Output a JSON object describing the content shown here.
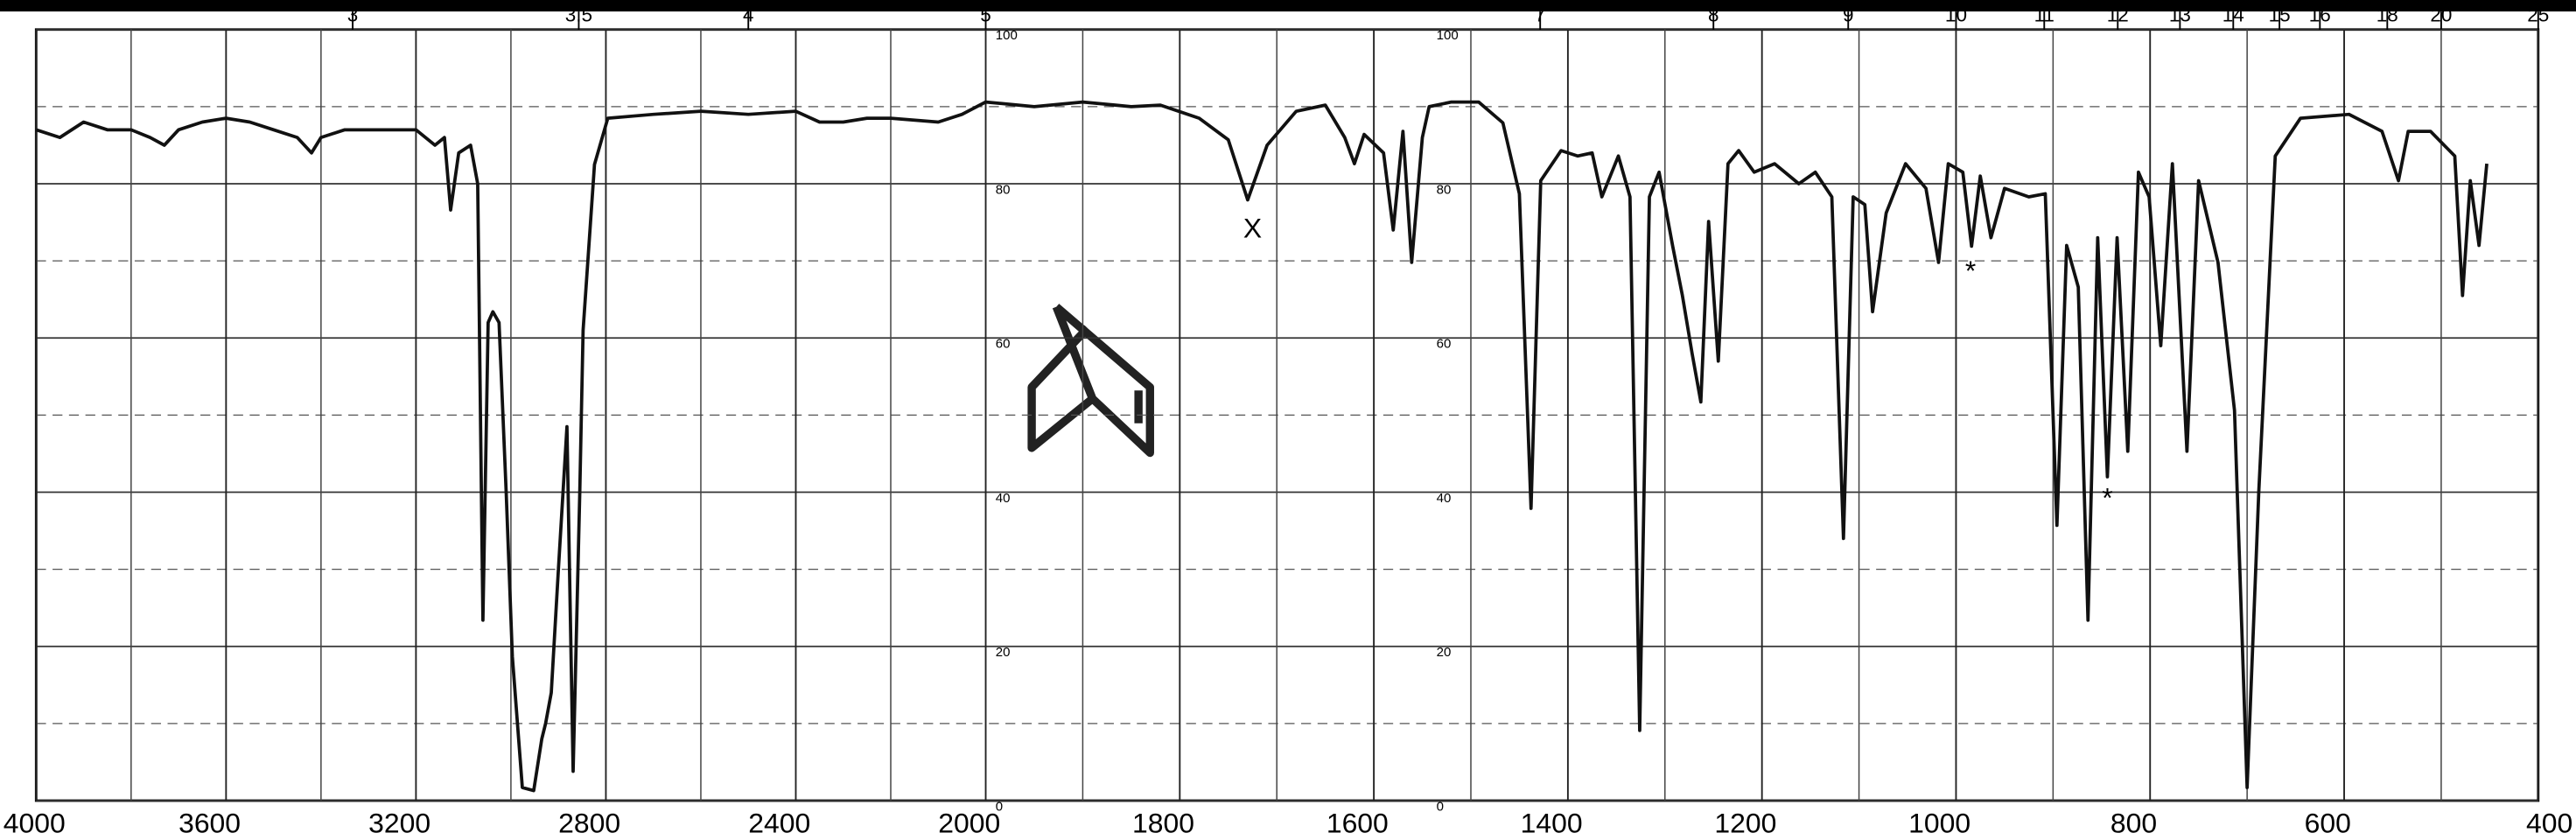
{
  "chart_data": {
    "type": "line",
    "xlim": [
      4000,
      400
    ],
    "xbreak": 2000,
    "ylim": [
      0,
      100
    ],
    "xticks": [
      4000,
      3600,
      3200,
      2800,
      2400,
      2000,
      1800,
      1600,
      1400,
      1200,
      1000,
      800,
      600,
      400
    ],
    "xminor": [
      3800,
      3400,
      3000,
      2600,
      2200,
      1900,
      1700,
      1500,
      1300,
      1100,
      900,
      700,
      500
    ],
    "yticks": [
      0,
      20,
      40,
      60,
      80,
      100
    ],
    "yminor": [
      10,
      30,
      50,
      70,
      90
    ],
    "x2ticks": [
      3,
      3.5,
      4,
      5,
      7,
      8,
      9,
      10,
      11,
      12,
      13,
      14,
      15,
      16,
      18,
      20,
      25
    ],
    "grid": true,
    "color": "#111111",
    "x": [
      4000,
      3950,
      3900,
      3850,
      3800,
      3760,
      3730,
      3700,
      3650,
      3600,
      3550,
      3500,
      3450,
      3420,
      3400,
      3350,
      3300,
      3250,
      3200,
      3160,
      3140,
      3127,
      3110,
      3085,
      3070,
      3059,
      3048,
      3038,
      3025,
      3010,
      2997,
      2976,
      2952,
      2935,
      2927,
      2915,
      2900,
      2882,
      2869,
      2855,
      2848,
      2824,
      2796,
      2700,
      2600,
      2500,
      2400,
      2350,
      2300,
      2250,
      2200,
      2100,
      2050,
      2000,
      1950,
      1900,
      1850,
      1820,
      1780,
      1750,
      1730,
      1710,
      1680,
      1650,
      1630,
      1620,
      1610,
      1590,
      1580,
      1570,
      1561,
      1550,
      1543,
      1520,
      1492,
      1467,
      1450,
      1438,
      1428,
      1407,
      1390,
      1375,
      1365,
      1348,
      1336,
      1326,
      1316,
      1306,
      1292,
      1282,
      1272,
      1263,
      1255,
      1245,
      1235,
      1224,
      1208,
      1187,
      1162,
      1145,
      1128,
      1116,
      1106,
      1094,
      1086,
      1072,
      1052,
      1031,
      1018,
      1008,
      993,
      984,
      975,
      964,
      950,
      925,
      908,
      896,
      886,
      874,
      864,
      854,
      844,
      834,
      823,
      812,
      801,
      789,
      777,
      762,
      750,
      730,
      713,
      700,
      688,
      671,
      645,
      595,
      561,
      544,
      534,
      511,
      486,
      478,
      470,
      461,
      453
    ],
    "values": [
      87,
      86,
      88,
      87,
      87,
      86,
      85,
      87,
      88,
      88.5,
      88,
      87,
      86,
      84,
      86,
      87,
      87,
      87,
      87,
      85,
      86,
      76.6,
      84,
      85,
      80,
      23.4,
      62,
      63.4,
      62,
      40,
      18.7,
      1.7,
      1.3,
      8,
      10,
      14,
      30,
      48.5,
      3.8,
      40,
      61,
      82.5,
      88.5,
      89,
      89.4,
      89,
      89.4,
      88,
      88,
      88.5,
      88.5,
      88,
      89,
      90.6,
      90,
      90.6,
      90,
      90.2,
      88.5,
      85.7,
      77.9,
      85,
      89.4,
      90.2,
      86,
      82.6,
      86.4,
      84,
      74,
      86.8,
      69.8,
      86,
      90,
      90.6,
      90.6,
      87.9,
      78.7,
      37.9,
      80.4,
      84.3,
      83.6,
      84,
      78.3,
      83.6,
      78.3,
      9.1,
      78.3,
      81.5,
      71.9,
      65.5,
      58,
      51.7,
      75.1,
      57,
      82.6,
      84.3,
      81.5,
      82.6,
      80,
      81.5,
      78.3,
      34,
      78.3,
      77.3,
      63.4,
      76.2,
      82.6,
      79.4,
      69.8,
      82.6,
      81.5,
      71.9,
      81,
      73,
      79.4,
      78.3,
      78.7,
      35.7,
      72,
      66.6,
      23.4,
      73,
      42,
      73,
      45.3,
      81.5,
      78.3,
      59,
      82.6,
      45.3,
      80.4,
      69.8,
      50.6,
      1.7,
      40,
      83.6,
      88.5,
      89,
      86.8,
      80.4,
      86.8,
      86.8,
      83.6,
      65.5,
      80.4,
      72,
      82.6
    ],
    "annotations": [
      {
        "text": "X",
        "x": 1725,
        "y": 74
      },
      {
        "text": "*",
        "x": 985,
        "y": 68.5
      },
      {
        "text": "*",
        "x": 844,
        "y": 39
      }
    ]
  }
}
